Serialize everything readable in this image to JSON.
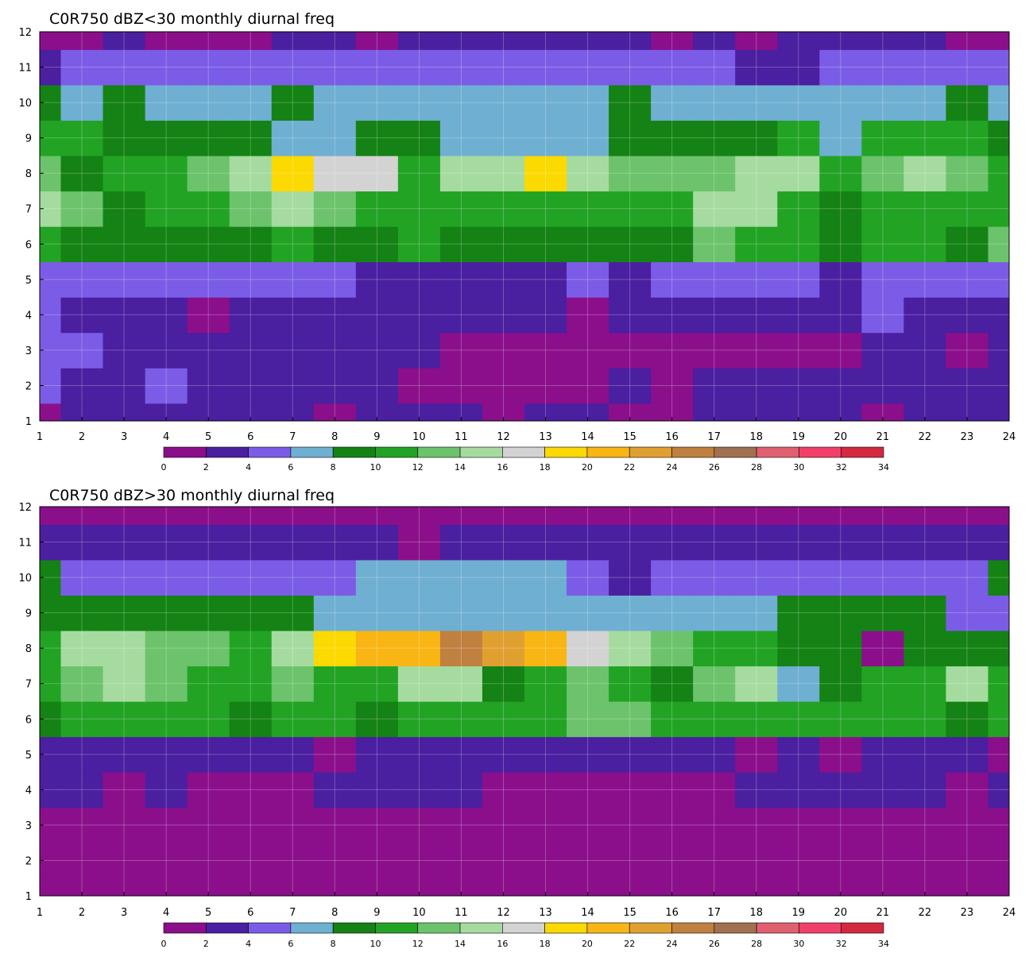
{
  "chart_data": [
    {
      "type": "heatmap",
      "title": "C0R750 dBZ<30 monthly diurnal freq",
      "xlabel": "",
      "ylabel": "",
      "xlim": [
        1,
        24
      ],
      "ylim": [
        1,
        12
      ],
      "x_ticks": [
        1,
        2,
        3,
        4,
        5,
        6,
        7,
        8,
        9,
        10,
        11,
        12,
        13,
        14,
        15,
        16,
        17,
        18,
        19,
        20,
        21,
        22,
        23,
        24
      ],
      "y_ticks": [
        1,
        2,
        3,
        4,
        5,
        6,
        7,
        8,
        9,
        10,
        11,
        12
      ],
      "grid": true,
      "x": [
        1,
        2,
        3,
        4,
        5,
        6,
        7,
        8,
        9,
        10,
        11,
        12,
        13,
        14,
        15,
        16,
        17,
        18,
        19,
        20,
        21,
        22,
        23,
        24
      ],
      "y": [
        1,
        2,
        3,
        4,
        5,
        6,
        7,
        8,
        9,
        10,
        11,
        12
      ],
      "z": [
        [
          1,
          3,
          3,
          3,
          3,
          3,
          3,
          1,
          3,
          3,
          3,
          1,
          3,
          3,
          1,
          0,
          3,
          3,
          3,
          3,
          1,
          3,
          3,
          3
        ],
        [
          5,
          3,
          3,
          5,
          3,
          3,
          3,
          3,
          3,
          1,
          1,
          1,
          1,
          1,
          3,
          1,
          3,
          3,
          3,
          3,
          3,
          3,
          3,
          3
        ],
        [
          5,
          5,
          3,
          3,
          3,
          3,
          3,
          3,
          3,
          3,
          1,
          1,
          1,
          1,
          1,
          1,
          1,
          1,
          1,
          1,
          3,
          3,
          1,
          3
        ],
        [
          5,
          3,
          3,
          3,
          1,
          3,
          3,
          3,
          3,
          3,
          3,
          3,
          3,
          1,
          3,
          3,
          3,
          3,
          3,
          3,
          5,
          3,
          3,
          3
        ],
        [
          5,
          5,
          5,
          5,
          5,
          5,
          5,
          5,
          3,
          3,
          3,
          3,
          3,
          5,
          3,
          5,
          5,
          5,
          5,
          3,
          5,
          5,
          5,
          5
        ],
        [
          11,
          9,
          9,
          9,
          9,
          9,
          11,
          9,
          9,
          11,
          9,
          9,
          9,
          9,
          9,
          9,
          13,
          11,
          11,
          9,
          11,
          11,
          9,
          13
        ],
        [
          15,
          13,
          9,
          11,
          11,
          13,
          15,
          13,
          11,
          11,
          11,
          11,
          11,
          11,
          11,
          11,
          15,
          15,
          11,
          9,
          11,
          11,
          11,
          11
        ],
        [
          13,
          9,
          11,
          11,
          13,
          15,
          19,
          17,
          17,
          11,
          15,
          15,
          19,
          15,
          13,
          13,
          13,
          15,
          15,
          11,
          13,
          15,
          13,
          11
        ],
        [
          11,
          11,
          9,
          9,
          9,
          9,
          7,
          7,
          9,
          9,
          7,
          7,
          7,
          7,
          9,
          9,
          9,
          9,
          11,
          7,
          11,
          11,
          11,
          9
        ],
        [
          9,
          7,
          9,
          7,
          7,
          7,
          9,
          7,
          7,
          7,
          7,
          7,
          7,
          7,
          9,
          7,
          7,
          7,
          7,
          7,
          7,
          7,
          9,
          7
        ],
        [
          3,
          5,
          5,
          5,
          5,
          5,
          5,
          5,
          5,
          5,
          5,
          5,
          5,
          5,
          5,
          5,
          5,
          3,
          3,
          5,
          5,
          5,
          5,
          5
        ],
        [
          1,
          1,
          3,
          1,
          1,
          1,
          3,
          3,
          1,
          3,
          3,
          3,
          3,
          3,
          3,
          1,
          3,
          1,
          3,
          3,
          3,
          3,
          1,
          1
        ]
      ],
      "colorbar": {
        "levels": [
          0,
          2,
          4,
          6,
          8,
          10,
          12,
          14,
          16,
          18,
          20,
          22,
          24,
          26,
          28,
          30,
          32,
          34
        ],
        "labels": [
          "0",
          "2",
          "4",
          "6",
          "8",
          "10",
          "12",
          "14",
          "16",
          "18",
          "20",
          "22",
          "24",
          "26",
          "28",
          "30",
          "32",
          "34"
        ],
        "colors": [
          "#8b0f8b",
          "#4a1fa0",
          "#7b5ce6",
          "#6fafd2",
          "#148214",
          "#22a324",
          "#6cc36c",
          "#a6dba0",
          "#d3d3d3",
          "#fcd900",
          "#f9b514",
          "#e0a030",
          "#c08040",
          "#a07050",
          "#e06070",
          "#f0406a",
          "#d42840"
        ]
      }
    },
    {
      "type": "heatmap",
      "title": "C0R750 dBZ>30 monthly diurnal freq",
      "xlabel": "",
      "ylabel": "",
      "xlim": [
        1,
        24
      ],
      "ylim": [
        1,
        12
      ],
      "x_ticks": [
        1,
        2,
        3,
        4,
        5,
        6,
        7,
        8,
        9,
        10,
        11,
        12,
        13,
        14,
        15,
        16,
        17,
        18,
        19,
        20,
        21,
        22,
        23,
        24
      ],
      "y_ticks": [
        1,
        2,
        3,
        4,
        5,
        6,
        7,
        8,
        9,
        10,
        11,
        12
      ],
      "grid": true,
      "x": [
        1,
        2,
        3,
        4,
        5,
        6,
        7,
        8,
        9,
        10,
        11,
        12,
        13,
        14,
        15,
        16,
        17,
        18,
        19,
        20,
        21,
        22,
        23,
        24
      ],
      "y": [
        1,
        2,
        3,
        4,
        5,
        6,
        7,
        8,
        9,
        10,
        11,
        12
      ],
      "z": [
        [
          1,
          1,
          1,
          1,
          1,
          1,
          1,
          1,
          1,
          1,
          1,
          1,
          1,
          1,
          1,
          1,
          1,
          1,
          1,
          1,
          1,
          1,
          1,
          1
        ],
        [
          1,
          1,
          1,
          1,
          1,
          1,
          1,
          1,
          1,
          1,
          1,
          1,
          1,
          1,
          1,
          1,
          1,
          1,
          1,
          1,
          1,
          1,
          1,
          1
        ],
        [
          1,
          1,
          1,
          1,
          1,
          1,
          1,
          1,
          1,
          1,
          1,
          1,
          1,
          1,
          1,
          1,
          1,
          1,
          1,
          1,
          1,
          1,
          1,
          1
        ],
        [
          3,
          3,
          1,
          3,
          1,
          1,
          1,
          3,
          3,
          3,
          3,
          1,
          1,
          1,
          1,
          1,
          1,
          3,
          3,
          3,
          3,
          3,
          1,
          3
        ],
        [
          3,
          3,
          3,
          3,
          3,
          3,
          3,
          1,
          3,
          3,
          3,
          3,
          3,
          3,
          3,
          3,
          3,
          1,
          3,
          1,
          3,
          3,
          3,
          1
        ],
        [
          9,
          11,
          11,
          11,
          11,
          9,
          11,
          11,
          9,
          11,
          11,
          11,
          11,
          13,
          13,
          11,
          11,
          11,
          11,
          11,
          11,
          11,
          9,
          11
        ],
        [
          11,
          13,
          15,
          13,
          11,
          11,
          13,
          11,
          11,
          15,
          15,
          9,
          11,
          13,
          11,
          9,
          13,
          15,
          7,
          9,
          11,
          11,
          15,
          11
        ],
        [
          11,
          15,
          15,
          13,
          13,
          11,
          15,
          19,
          21,
          21,
          25,
          23,
          21,
          17,
          15,
          13,
          11,
          11,
          9,
          9,
          1,
          9,
          9,
          9
        ],
        [
          9,
          9,
          9,
          9,
          9,
          9,
          9,
          7,
          7,
          7,
          7,
          7,
          7,
          7,
          7,
          7,
          7,
          7,
          9,
          9,
          9,
          9,
          5,
          5
        ],
        [
          9,
          5,
          5,
          5,
          5,
          5,
          5,
          5,
          7,
          7,
          7,
          7,
          7,
          5,
          3,
          5,
          5,
          5,
          5,
          5,
          5,
          5,
          5,
          9
        ],
        [
          3,
          3,
          3,
          3,
          3,
          3,
          3,
          3,
          3,
          1,
          3,
          3,
          3,
          3,
          3,
          3,
          3,
          3,
          3,
          3,
          3,
          3,
          3,
          3
        ],
        [
          1,
          1,
          1,
          1,
          1,
          1,
          1,
          1,
          1,
          1,
          1,
          1,
          1,
          1,
          1,
          1,
          1,
          1,
          1,
          1,
          1,
          1,
          1,
          1
        ]
      ],
      "colorbar": {
        "levels": [
          0,
          2,
          4,
          6,
          8,
          10,
          12,
          14,
          16,
          18,
          20,
          22,
          24,
          26,
          28,
          30,
          32,
          34
        ],
        "labels": [
          "0",
          "2",
          "4",
          "6",
          "8",
          "10",
          "12",
          "14",
          "16",
          "18",
          "20",
          "22",
          "24",
          "26",
          "28",
          "30",
          "32",
          "34"
        ],
        "colors": [
          "#8b0f8b",
          "#4a1fa0",
          "#7b5ce6",
          "#6fafd2",
          "#148214",
          "#22a324",
          "#6cc36c",
          "#a6dba0",
          "#d3d3d3",
          "#fcd900",
          "#f9b514",
          "#e0a030",
          "#c08040",
          "#a07050",
          "#e06070",
          "#f0406a",
          "#d42840"
        ]
      }
    }
  ]
}
